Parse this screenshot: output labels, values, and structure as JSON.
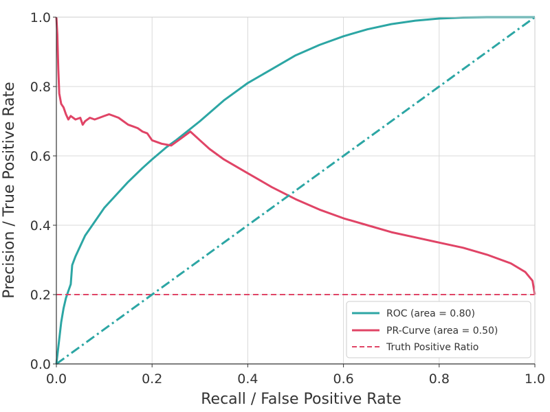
{
  "chart_data": {
    "type": "line",
    "xlabel": "Recall / False Positive Rate",
    "ylabel": "Precision / True Positive Rate",
    "xlim": [
      0.0,
      1.0
    ],
    "ylim": [
      0.0,
      1.0
    ],
    "xticks": [
      "0.0",
      "0.2",
      "0.4",
      "0.6",
      "0.8",
      "1.0"
    ],
    "yticks": [
      "0.0",
      "0.2",
      "0.4",
      "0.6",
      "0.8",
      "1.0"
    ],
    "grid": true,
    "legend_position": "bottom-right",
    "series": [
      {
        "name": "ROC (area = 0.80)",
        "color": "#2ca6a4",
        "style": "solid",
        "x": [
          0.0,
          0.005,
          0.01,
          0.015,
          0.02,
          0.025,
          0.03,
          0.033,
          0.04,
          0.05,
          0.06,
          0.08,
          0.1,
          0.12,
          0.15,
          0.18,
          0.2,
          0.23,
          0.25,
          0.3,
          0.35,
          0.4,
          0.45,
          0.5,
          0.55,
          0.6,
          0.65,
          0.7,
          0.75,
          0.8,
          0.85,
          0.9,
          0.95,
          1.0
        ],
        "y": [
          0.0,
          0.06,
          0.12,
          0.16,
          0.19,
          0.21,
          0.23,
          0.285,
          0.31,
          0.34,
          0.37,
          0.41,
          0.45,
          0.48,
          0.525,
          0.565,
          0.59,
          0.625,
          0.645,
          0.7,
          0.76,
          0.81,
          0.85,
          0.89,
          0.92,
          0.945,
          0.965,
          0.98,
          0.99,
          0.996,
          0.999,
          1.0,
          1.0,
          1.0
        ]
      },
      {
        "name": "PR-Curve (area = 0.50)",
        "color": "#e04466",
        "style": "solid",
        "x": [
          0.0,
          0.002,
          0.004,
          0.006,
          0.01,
          0.015,
          0.02,
          0.025,
          0.03,
          0.04,
          0.05,
          0.055,
          0.06,
          0.07,
          0.08,
          0.09,
          0.1,
          0.11,
          0.12,
          0.13,
          0.14,
          0.15,
          0.16,
          0.17,
          0.18,
          0.19,
          0.2,
          0.22,
          0.24,
          0.26,
          0.28,
          0.3,
          0.32,
          0.35,
          0.4,
          0.45,
          0.5,
          0.55,
          0.6,
          0.65,
          0.7,
          0.75,
          0.8,
          0.85,
          0.9,
          0.95,
          0.98,
          0.995,
          1.0
        ],
        "y": [
          1.0,
          0.95,
          0.85,
          0.78,
          0.75,
          0.74,
          0.72,
          0.705,
          0.715,
          0.705,
          0.71,
          0.69,
          0.7,
          0.71,
          0.705,
          0.71,
          0.715,
          0.72,
          0.715,
          0.71,
          0.7,
          0.69,
          0.685,
          0.68,
          0.67,
          0.665,
          0.645,
          0.635,
          0.63,
          0.65,
          0.67,
          0.645,
          0.62,
          0.59,
          0.55,
          0.51,
          0.475,
          0.445,
          0.42,
          0.4,
          0.38,
          0.365,
          0.35,
          0.335,
          0.315,
          0.29,
          0.265,
          0.24,
          0.2
        ]
      },
      {
        "name": "Truth Positive Ratio",
        "color": "#e04466",
        "style": "dashed",
        "x": [
          0.0,
          1.0
        ],
        "y": [
          0.2,
          0.2
        ]
      },
      {
        "name": "",
        "color": "#2ca6a4",
        "style": "dashdot",
        "x": [
          0.0,
          1.0
        ],
        "y": [
          0.0,
          1.0
        ]
      }
    ]
  }
}
